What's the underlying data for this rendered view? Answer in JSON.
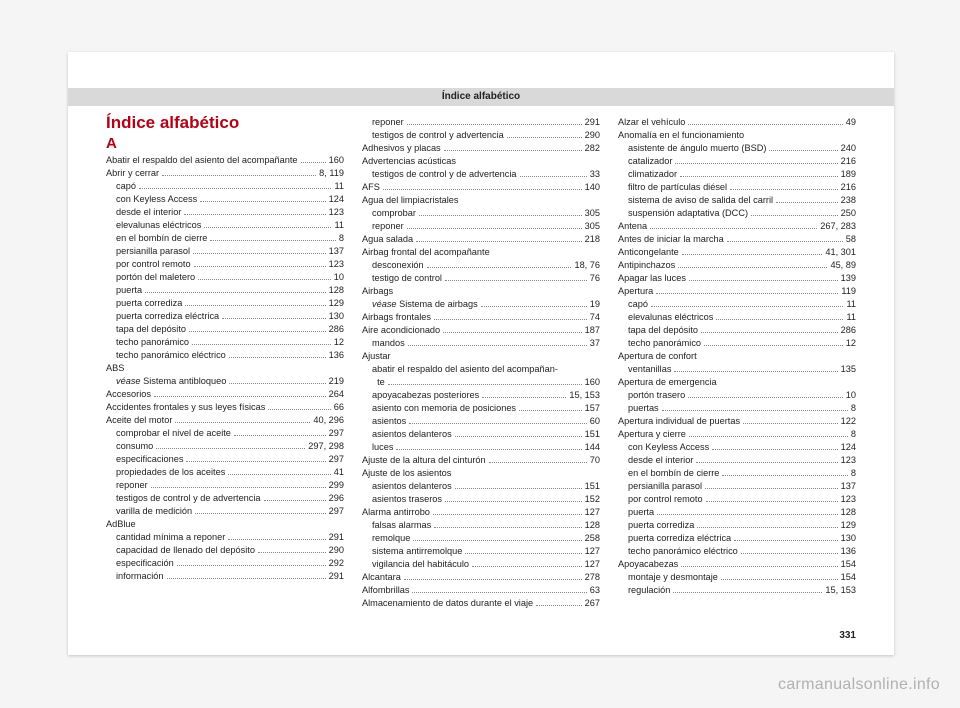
{
  "header": "Índice alfabético",
  "title": "Índice alfabético",
  "letter": "A",
  "pagenum": "331",
  "watermark": "carmanualsonline.info",
  "col1": [
    {
      "t": "Abatir el respaldo del asiento del acompañante",
      "p": "160",
      "s": false
    },
    {
      "t": "Abrir y cerrar",
      "p": "8, 119",
      "s": false
    },
    {
      "t": "capó",
      "p": "11",
      "s": true
    },
    {
      "t": "con Keyless Access",
      "p": "124",
      "s": true
    },
    {
      "t": "desde el interior",
      "p": "123",
      "s": true
    },
    {
      "t": "elevalunas eléctricos",
      "p": "11",
      "s": true
    },
    {
      "t": "en el bombín de cierre",
      "p": "8",
      "s": true
    },
    {
      "t": "persianilla parasol",
      "p": "137",
      "s": true
    },
    {
      "t": "por control remoto",
      "p": "123",
      "s": true
    },
    {
      "t": "portón del maletero",
      "p": "10",
      "s": true
    },
    {
      "t": "puerta",
      "p": "128",
      "s": true
    },
    {
      "t": "puerta corrediza",
      "p": "129",
      "s": true
    },
    {
      "t": "puerta corrediza eléctrica",
      "p": "130",
      "s": true
    },
    {
      "t": "tapa del depósito",
      "p": "286",
      "s": true
    },
    {
      "t": "techo panorámico",
      "p": "12",
      "s": true
    },
    {
      "t": "techo panorámico eléctrico",
      "p": "136",
      "s": true
    },
    {
      "t": "ABS",
      "p": "",
      "s": false,
      "nodots": true
    },
    {
      "t": "<em>véase</em> Sistema antibloqueo",
      "p": "219",
      "s": true
    },
    {
      "t": "Accesorios",
      "p": "264",
      "s": false
    },
    {
      "t": "Accidentes frontales y sus leyes físicas",
      "p": "66",
      "s": false
    },
    {
      "t": "Aceite del motor",
      "p": "40, 296",
      "s": false
    },
    {
      "t": "comprobar el nivel de aceite",
      "p": "297",
      "s": true
    },
    {
      "t": "consumo",
      "p": "297, 298",
      "s": true
    },
    {
      "t": "especificaciones",
      "p": "297",
      "s": true
    },
    {
      "t": "propiedades de los aceites",
      "p": "41",
      "s": true
    },
    {
      "t": "reponer",
      "p": "299",
      "s": true
    },
    {
      "t": "testigos de control y de advertencia",
      "p": "296",
      "s": true
    },
    {
      "t": "varilla de medición",
      "p": "297",
      "s": true
    },
    {
      "t": "AdBlue",
      "p": "",
      "s": false,
      "nodots": true
    },
    {
      "t": "cantidad mínima a reponer",
      "p": "291",
      "s": true
    },
    {
      "t": "capacidad de llenado del depósito",
      "p": "290",
      "s": true
    },
    {
      "t": "especificación",
      "p": "292",
      "s": true
    },
    {
      "t": "información",
      "p": "291",
      "s": true
    }
  ],
  "col2": [
    {
      "t": "reponer",
      "p": "291",
      "s": true
    },
    {
      "t": "testigos de control y advertencia",
      "p": "290",
      "s": true
    },
    {
      "t": "Adhesivos y placas",
      "p": "282",
      "s": false
    },
    {
      "t": "Advertencias acústicas",
      "p": "",
      "s": false,
      "nodots": true
    },
    {
      "t": "testigos de control y de advertencia",
      "p": "33",
      "s": true
    },
    {
      "t": "AFS",
      "p": "140",
      "s": false
    },
    {
      "t": "Agua del limpiacristales",
      "p": "",
      "s": false,
      "nodots": true
    },
    {
      "t": "comprobar",
      "p": "305",
      "s": true
    },
    {
      "t": "reponer",
      "p": "305",
      "s": true
    },
    {
      "t": "Agua salada",
      "p": "218",
      "s": false
    },
    {
      "t": "Airbag frontal del acompañante",
      "p": "",
      "s": false,
      "nodots": true
    },
    {
      "t": "desconexión",
      "p": "18, 76",
      "s": true
    },
    {
      "t": "testigo de control",
      "p": "76",
      "s": true
    },
    {
      "t": "Airbags",
      "p": "",
      "s": false,
      "nodots": true
    },
    {
      "t": "<em>véase</em> Sistema de airbags",
      "p": "19",
      "s": true
    },
    {
      "t": "Airbags frontales",
      "p": "74",
      "s": false
    },
    {
      "t": "Aire acondicionado",
      "p": "187",
      "s": false
    },
    {
      "t": "mandos",
      "p": "37",
      "s": true
    },
    {
      "t": "Ajustar",
      "p": "",
      "s": false,
      "nodots": true
    },
    {
      "t": "abatir el respaldo del asiento del acompañan-",
      "p": "",
      "s": true,
      "nodots": true
    },
    {
      "t": "&nbsp;&nbsp;te",
      "p": "160",
      "s": true
    },
    {
      "t": "apoyacabezas posteriores",
      "p": "15, 153",
      "s": true
    },
    {
      "t": "asiento con memoria de posiciones",
      "p": "157",
      "s": true
    },
    {
      "t": "asientos",
      "p": "60",
      "s": true
    },
    {
      "t": "asientos delanteros",
      "p": "151",
      "s": true
    },
    {
      "t": "luces",
      "p": "144",
      "s": true
    },
    {
      "t": "Ajuste de la altura del cinturón",
      "p": "70",
      "s": false
    },
    {
      "t": "Ajuste de los asientos",
      "p": "",
      "s": false,
      "nodots": true
    },
    {
      "t": "asientos delanteros",
      "p": "151",
      "s": true
    },
    {
      "t": "asientos traseros",
      "p": "152",
      "s": true
    },
    {
      "t": "Alarma antirrobo",
      "p": "127",
      "s": false
    },
    {
      "t": "falsas alarmas",
      "p": "128",
      "s": true
    },
    {
      "t": "remolque",
      "p": "258",
      "s": true
    },
    {
      "t": "sistema antirremolque",
      "p": "127",
      "s": true
    },
    {
      "t": "vigilancia del habitáculo",
      "p": "127",
      "s": true
    },
    {
      "t": "Alcantara",
      "p": "278",
      "s": false
    },
    {
      "t": "Alfombrillas",
      "p": "63",
      "s": false
    },
    {
      "t": "Almacenamiento de datos durante el viaje",
      "p": "267",
      "s": false
    }
  ],
  "col3": [
    {
      "t": "Alzar el vehículo",
      "p": "49",
      "s": false
    },
    {
      "t": "Anomalía en el funcionamiento",
      "p": "",
      "s": false,
      "nodots": true
    },
    {
      "t": "asistente de ángulo muerto (BSD)",
      "p": "240",
      "s": true
    },
    {
      "t": "catalizador",
      "p": "216",
      "s": true
    },
    {
      "t": "climatizador",
      "p": "189",
      "s": true
    },
    {
      "t": "filtro de partículas diésel",
      "p": "216",
      "s": true
    },
    {
      "t": "sistema de aviso de salida del carril",
      "p": "238",
      "s": true
    },
    {
      "t": "suspensión adaptativa (DCC)",
      "p": "250",
      "s": true
    },
    {
      "t": "Antena",
      "p": "267, 283",
      "s": false
    },
    {
      "t": "Antes de iniciar la marcha",
      "p": "58",
      "s": false
    },
    {
      "t": "Anticongelante",
      "p": "41, 301",
      "s": false
    },
    {
      "t": "Antipinchazos",
      "p": "45, 89",
      "s": false
    },
    {
      "t": "Apagar las luces",
      "p": "139",
      "s": false
    },
    {
      "t": "Apertura",
      "p": "119",
      "s": false
    },
    {
      "t": "capó",
      "p": "11",
      "s": true
    },
    {
      "t": "elevalunas eléctricos",
      "p": "11",
      "s": true
    },
    {
      "t": "tapa del depósito",
      "p": "286",
      "s": true
    },
    {
      "t": "techo panorámico",
      "p": "12",
      "s": true
    },
    {
      "t": "Apertura de confort",
      "p": "",
      "s": false,
      "nodots": true
    },
    {
      "t": "ventanillas",
      "p": "135",
      "s": true
    },
    {
      "t": "Apertura de emergencia",
      "p": "",
      "s": false,
      "nodots": true
    },
    {
      "t": "portón trasero",
      "p": "10",
      "s": true
    },
    {
      "t": "puertas",
      "p": "8",
      "s": true
    },
    {
      "t": "Apertura individual de puertas",
      "p": "122",
      "s": false
    },
    {
      "t": "Apertura y cierre",
      "p": "8",
      "s": false
    },
    {
      "t": "con Keyless Access",
      "p": "124",
      "s": true
    },
    {
      "t": "desde el interior",
      "p": "123",
      "s": true
    },
    {
      "t": "en el bombín de cierre",
      "p": "8",
      "s": true
    },
    {
      "t": "persianilla parasol",
      "p": "137",
      "s": true
    },
    {
      "t": "por control remoto",
      "p": "123",
      "s": true
    },
    {
      "t": "puerta",
      "p": "128",
      "s": true
    },
    {
      "t": "puerta corrediza",
      "p": "129",
      "s": true
    },
    {
      "t": "puerta corrediza eléctrica",
      "p": "130",
      "s": true
    },
    {
      "t": "techo panorámico eléctrico",
      "p": "136",
      "s": true
    },
    {
      "t": "Apoyacabezas",
      "p": "154",
      "s": false
    },
    {
      "t": "montaje y desmontaje",
      "p": "154",
      "s": true
    },
    {
      "t": "regulación",
      "p": "15, 153",
      "s": true
    }
  ]
}
